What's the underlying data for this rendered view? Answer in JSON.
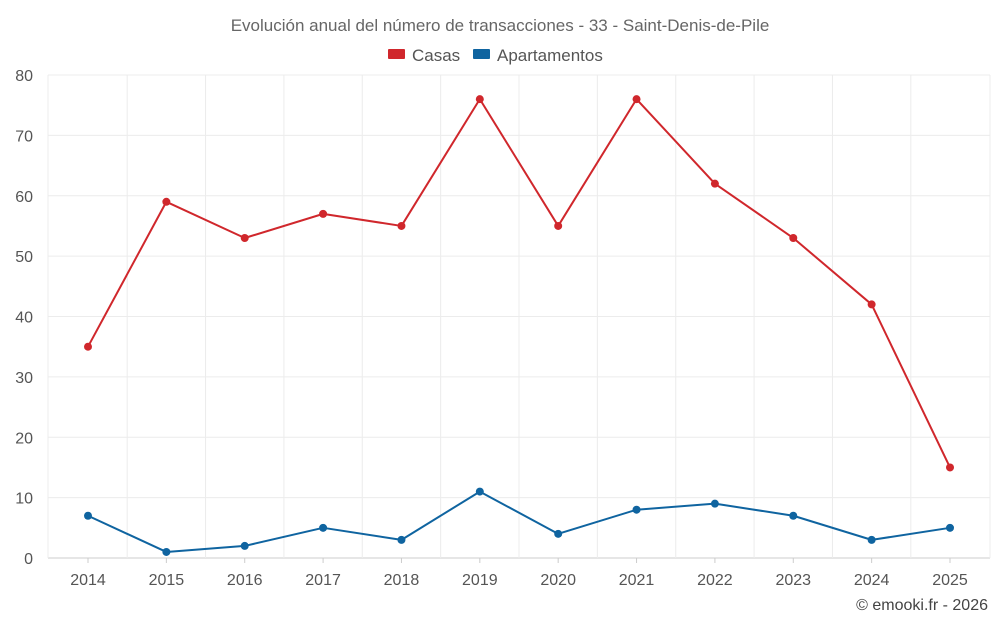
{
  "chart_data": {
    "type": "line",
    "title": "Evolución anual del número de transacciones - 33 - Saint-Denis-de-Pile",
    "xlabel": "",
    "ylabel": "",
    "categories": [
      "2014",
      "2015",
      "2016",
      "2017",
      "2018",
      "2019",
      "2020",
      "2021",
      "2022",
      "2023",
      "2024",
      "2025"
    ],
    "series": [
      {
        "name": "Casas",
        "color": "#d0272c",
        "values": [
          35,
          59,
          53,
          57,
          55,
          76,
          55,
          76,
          62,
          53,
          42,
          15
        ]
      },
      {
        "name": "Apartamentos",
        "color": "#0f64a0",
        "values": [
          7,
          1,
          2,
          5,
          3,
          11,
          4,
          8,
          9,
          7,
          3,
          5
        ]
      }
    ],
    "ylim": [
      0,
      80
    ],
    "yticks": [
      0,
      10,
      20,
      30,
      40,
      50,
      60,
      70,
      80
    ],
    "grid": true,
    "legend_position": "top-center"
  },
  "credit": "© emooki.fr - 2026"
}
